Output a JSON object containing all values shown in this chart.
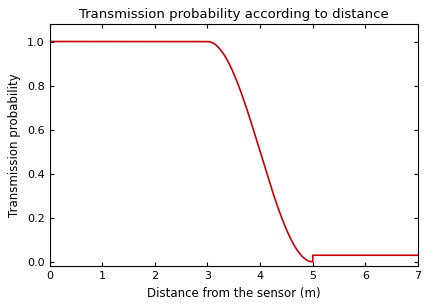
{
  "title": "Transmission probability according to distance",
  "xlabel": "Distance from the sensor (m)",
  "ylabel": "Transmission probability",
  "xlim": [
    0,
    7
  ],
  "ylim": [
    -0.02,
    1.08
  ],
  "xticks": [
    0,
    1,
    2,
    3,
    4,
    5,
    6,
    7
  ],
  "yticks": [
    0,
    0.2,
    0.4,
    0.6,
    0.8,
    1.0
  ],
  "line_color": "#cc0000",
  "line_width": 1.2,
  "d_flat": 3.0,
  "d_drop": 5.0,
  "background_color": "#ffffff",
  "title_fontsize": 9.5,
  "label_fontsize": 8.5,
  "tick_fontsize": 8.0
}
